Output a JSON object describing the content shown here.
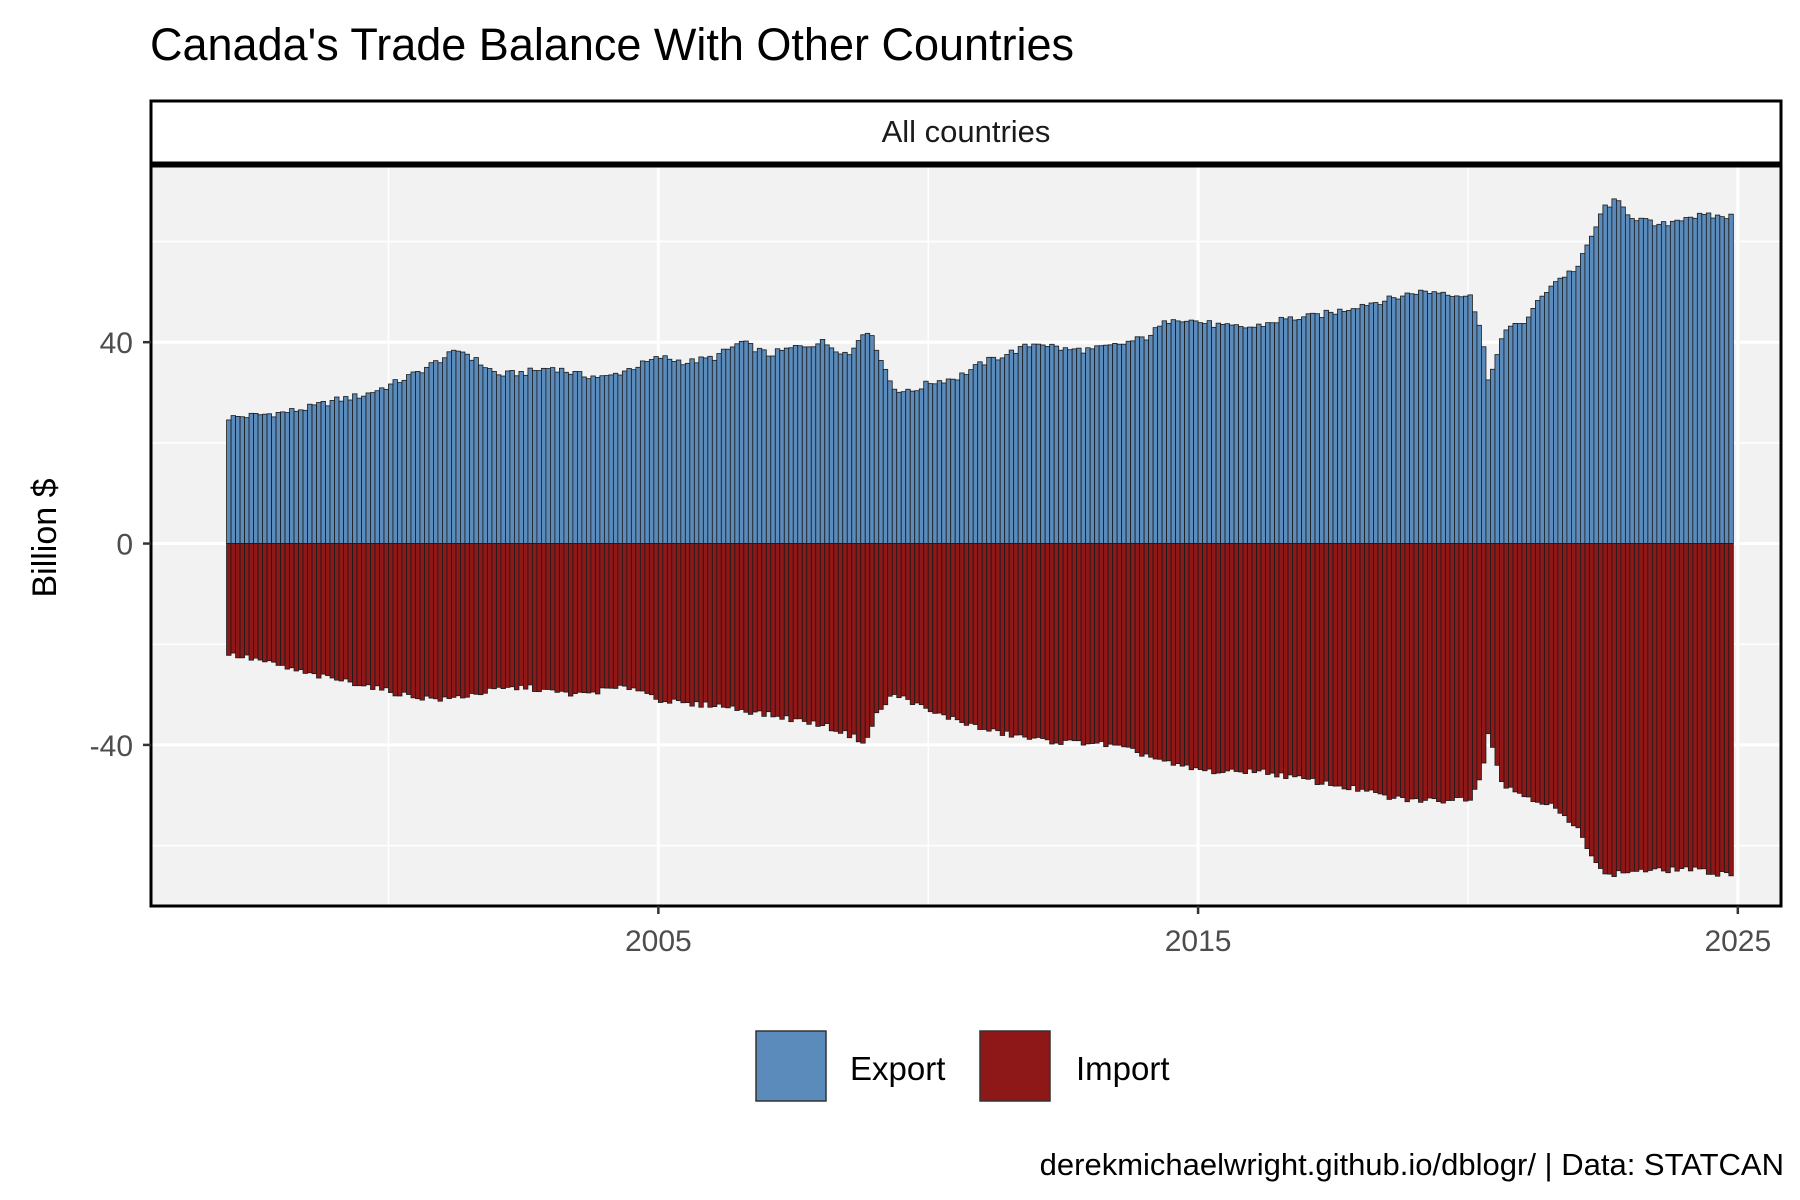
{
  "chart_data": {
    "type": "bar",
    "title": "Canada's Trade Balance With Other Countries",
    "facet_label": "All countries",
    "ylabel": "Billion $",
    "xlabel": "",
    "caption": "derekmichaelwright.github.io/dblogr/ | Data: STATCAN",
    "xlim": [
      1995.6,
      2025.8
    ],
    "ylim": [
      -72,
      75
    ],
    "x_ticks": [
      2005,
      2015,
      2025
    ],
    "x_tick_labels": [
      "2005",
      "2015",
      "2025"
    ],
    "y_ticks": [
      40,
      0,
      -40
    ],
    "y_tick_labels": [
      "40",
      "0",
      "-40"
    ],
    "grid": true,
    "legend_position": "bottom",
    "colors": {
      "export": "#5a8bbb",
      "import": "#8e1717",
      "panel_bg": "#f2f2f2",
      "grid": "#ffffff",
      "bar_outline": "#1a1a1a"
    },
    "series_note_monthly": "monthly values, Jan 1997 to Nov 2024",
    "series": [
      {
        "name": "Export",
        "anchors": [
          [
            1997.0,
            25
          ],
          [
            1997.5,
            25.5
          ],
          [
            1998.0,
            26
          ],
          [
            1998.5,
            27
          ],
          [
            1999.0,
            28.5
          ],
          [
            1999.5,
            29.5
          ],
          [
            2000.0,
            31.5
          ],
          [
            2000.5,
            34
          ],
          [
            2001.0,
            37
          ],
          [
            2001.3,
            38.5
          ],
          [
            2001.7,
            35.5
          ],
          [
            2002.0,
            33.5
          ],
          [
            2002.5,
            34
          ],
          [
            2003.0,
            35
          ],
          [
            2003.5,
            33.5
          ],
          [
            2004.0,
            33
          ],
          [
            2004.5,
            35
          ],
          [
            2005.0,
            37
          ],
          [
            2005.5,
            36
          ],
          [
            2006.0,
            37
          ],
          [
            2006.5,
            40
          ],
          [
            2007.0,
            37.5
          ],
          [
            2007.5,
            39
          ],
          [
            2008.0,
            40
          ],
          [
            2008.5,
            37.5
          ],
          [
            2008.8,
            43
          ],
          [
            2009.0,
            39
          ],
          [
            2009.3,
            31
          ],
          [
            2009.6,
            30
          ],
          [
            2010.0,
            32
          ],
          [
            2010.5,
            33
          ],
          [
            2011.0,
            36
          ],
          [
            2011.5,
            38
          ],
          [
            2012.0,
            40
          ],
          [
            2012.5,
            38.5
          ],
          [
            2013.0,
            38.5
          ],
          [
            2013.5,
            39.5
          ],
          [
            2014.0,
            41
          ],
          [
            2014.5,
            45
          ],
          [
            2015.0,
            44
          ],
          [
            2015.5,
            43
          ],
          [
            2016.0,
            43
          ],
          [
            2016.5,
            44.5
          ],
          [
            2017.0,
            45
          ],
          [
            2017.5,
            46
          ],
          [
            2018.0,
            47.5
          ],
          [
            2018.5,
            48.5
          ],
          [
            2019.0,
            50
          ],
          [
            2019.5,
            50
          ],
          [
            2020.0,
            49
          ],
          [
            2020.2,
            43
          ],
          [
            2020.35,
            31
          ],
          [
            2020.6,
            42
          ],
          [
            2021.0,
            44
          ],
          [
            2021.5,
            51.5
          ],
          [
            2022.0,
            55
          ],
          [
            2022.5,
            67
          ],
          [
            2022.7,
            68
          ],
          [
            2023.0,
            65
          ],
          [
            2023.5,
            63
          ],
          [
            2024.0,
            65
          ],
          [
            2024.5,
            65
          ],
          [
            2024.83,
            65
          ]
        ]
      },
      {
        "name": "Import",
        "anchors": [
          [
            1997.0,
            -22
          ],
          [
            1997.5,
            -23
          ],
          [
            1998.0,
            -24.5
          ],
          [
            1998.5,
            -26
          ],
          [
            1999.0,
            -27
          ],
          [
            1999.5,
            -28
          ],
          [
            2000.0,
            -29.5
          ],
          [
            2000.5,
            -30.5
          ],
          [
            2001.0,
            -31
          ],
          [
            2001.5,
            -30
          ],
          [
            2002.0,
            -29
          ],
          [
            2002.5,
            -28.5
          ],
          [
            2003.0,
            -29.5
          ],
          [
            2003.5,
            -30
          ],
          [
            2004.0,
            -29
          ],
          [
            2004.5,
            -28.5
          ],
          [
            2005.0,
            -31
          ],
          [
            2005.5,
            -32
          ],
          [
            2006.0,
            -32
          ],
          [
            2006.5,
            -33
          ],
          [
            2007.0,
            -34
          ],
          [
            2007.5,
            -35
          ],
          [
            2008.0,
            -36
          ],
          [
            2008.5,
            -38
          ],
          [
            2008.8,
            -39.5
          ],
          [
            2009.0,
            -34
          ],
          [
            2009.3,
            -30
          ],
          [
            2009.6,
            -31
          ],
          [
            2010.0,
            -33.5
          ],
          [
            2010.5,
            -35
          ],
          [
            2011.0,
            -37
          ],
          [
            2011.5,
            -38
          ],
          [
            2012.0,
            -39
          ],
          [
            2012.5,
            -39.5
          ],
          [
            2013.0,
            -39.5
          ],
          [
            2013.5,
            -40.5
          ],
          [
            2014.0,
            -42
          ],
          [
            2014.5,
            -44
          ],
          [
            2015.0,
            -45
          ],
          [
            2015.5,
            -45.5
          ],
          [
            2016.0,
            -45
          ],
          [
            2016.5,
            -46
          ],
          [
            2017.0,
            -47
          ],
          [
            2017.5,
            -48
          ],
          [
            2018.0,
            -49
          ],
          [
            2018.5,
            -50.5
          ],
          [
            2019.0,
            -51
          ],
          [
            2019.5,
            -51
          ],
          [
            2020.0,
            -50.5
          ],
          [
            2020.2,
            -46
          ],
          [
            2020.35,
            -37
          ],
          [
            2020.6,
            -48
          ],
          [
            2021.0,
            -50
          ],
          [
            2021.5,
            -52
          ],
          [
            2022.0,
            -57
          ],
          [
            2022.5,
            -66
          ],
          [
            2023.0,
            -65
          ],
          [
            2023.5,
            -65
          ],
          [
            2024.0,
            -64.5
          ],
          [
            2024.5,
            -65.5
          ],
          [
            2024.83,
            -65.5
          ]
        ]
      }
    ]
  }
}
